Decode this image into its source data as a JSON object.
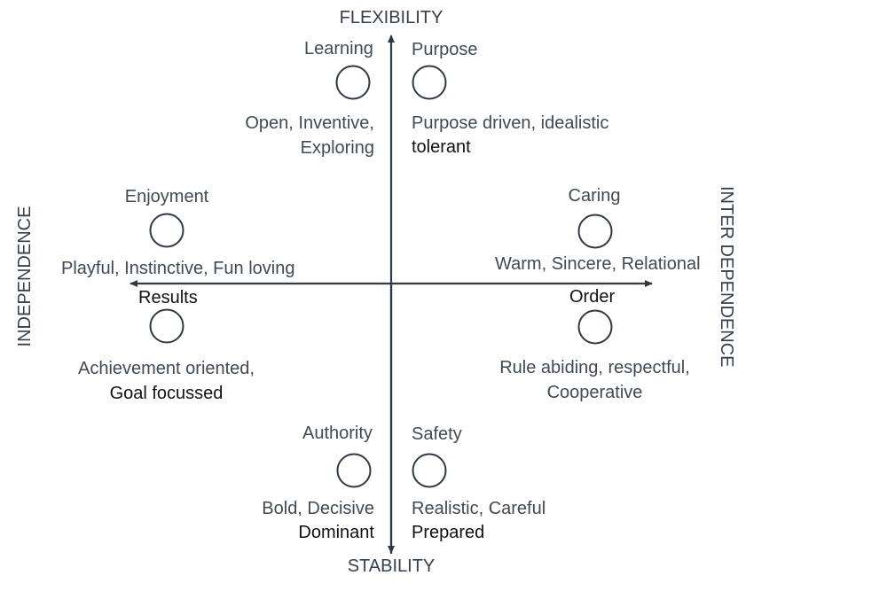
{
  "axes": {
    "top": "FLEXIBILITY",
    "bottom": "STABILITY",
    "left": "INDEPENDENCE",
    "right": "INTER DEPENDENCE"
  },
  "styles": [
    {
      "name": "Learning",
      "line1": "Open, Inventive,",
      "line2": "Exploring"
    },
    {
      "name": "Purpose",
      "line1": "Purpose driven, idealistic",
      "line2": "tolerant"
    },
    {
      "name": "Enjoyment",
      "line1": "Playful, Instinctive, Fun loving",
      "line2": ""
    },
    {
      "name": "Caring",
      "line1": "Warm, Sincere, Relational",
      "line2": ""
    },
    {
      "name": "Results",
      "line1": "Achievement oriented,",
      "line2": "Goal focussed"
    },
    {
      "name": "Order",
      "line1": "Rule abiding, respectful,",
      "line2": "Cooperative"
    },
    {
      "name": "Authority",
      "line1": "Bold, Decisive",
      "line2": "Dominant"
    },
    {
      "name": "Safety",
      "line1": "Realistic, Careful",
      "line2": "Prepared"
    }
  ],
  "colors": {
    "axis": "#2f3a45",
    "text": "#3f4a55",
    "emphasis": "#111111"
  }
}
